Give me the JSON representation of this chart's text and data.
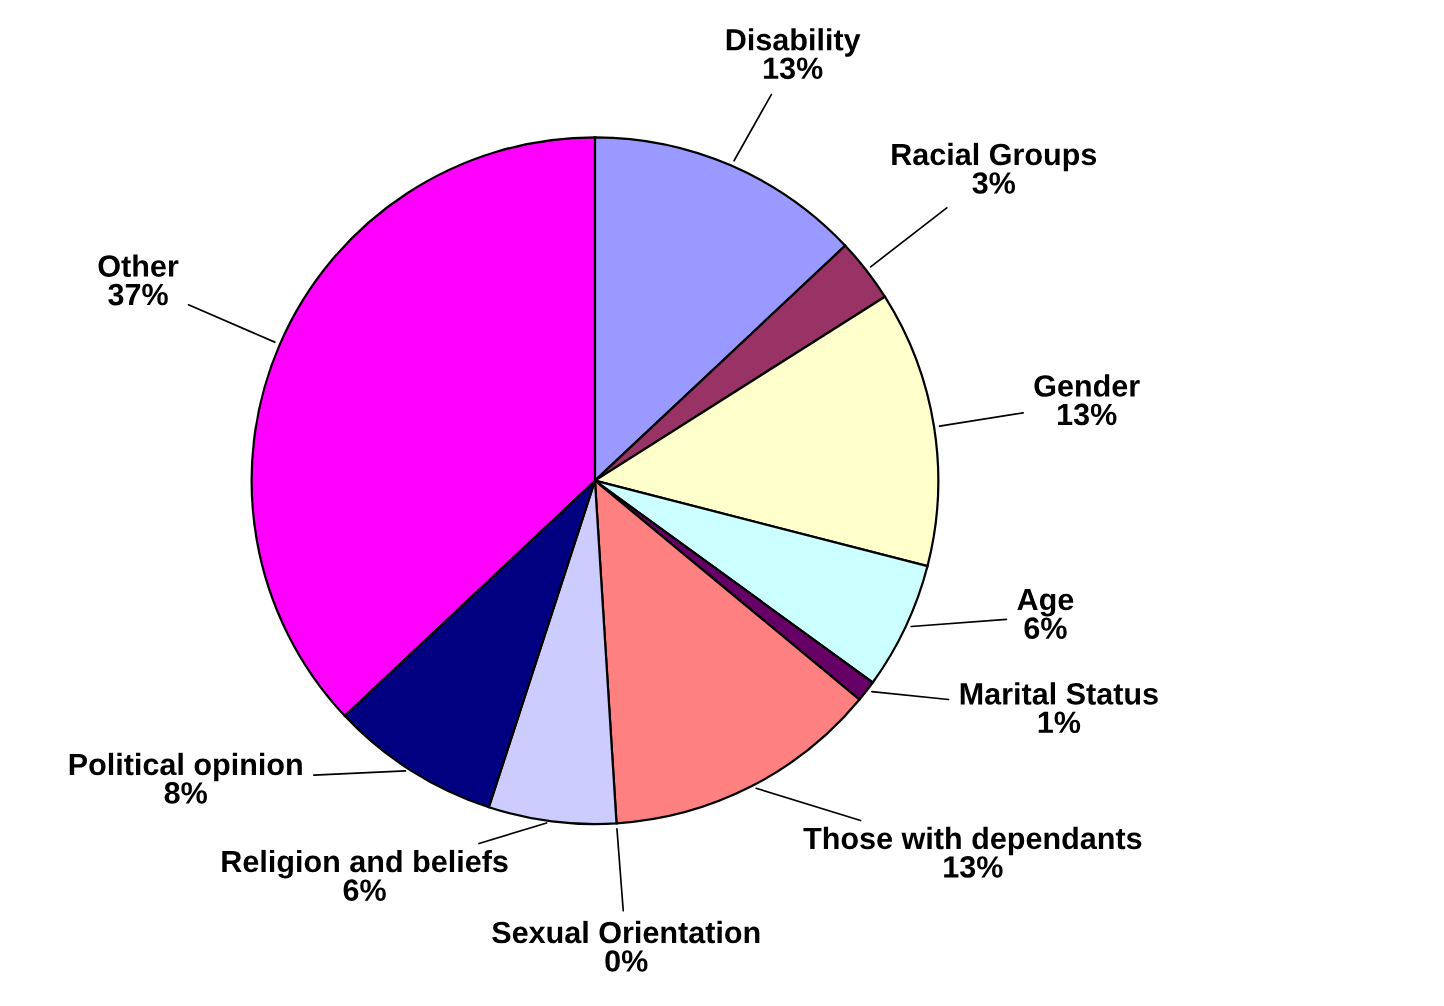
{
  "chart_data": {
    "type": "pie",
    "categories": [
      "Disability",
      "Racial Groups",
      "Gender",
      "Age",
      "Marital Status",
      "Those with dependants",
      "Sexual Orientation",
      "Religion and beliefs",
      "Political opinion",
      "Other"
    ],
    "values": [
      13,
      3,
      13,
      6,
      1,
      13,
      0,
      6,
      8,
      37
    ],
    "colors": [
      "#9999ff",
      "#993366",
      "#ffffcc",
      "#ccffff",
      "#660066",
      "#ff8080",
      "#0066cc",
      "#ccccff",
      "#000080",
      "#ff00ff"
    ],
    "value_labels": [
      "13%",
      "3%",
      "13%",
      "6%",
      "1%",
      "13%",
      "0%",
      "6%",
      "8%",
      "37%"
    ],
    "legend": false
  }
}
